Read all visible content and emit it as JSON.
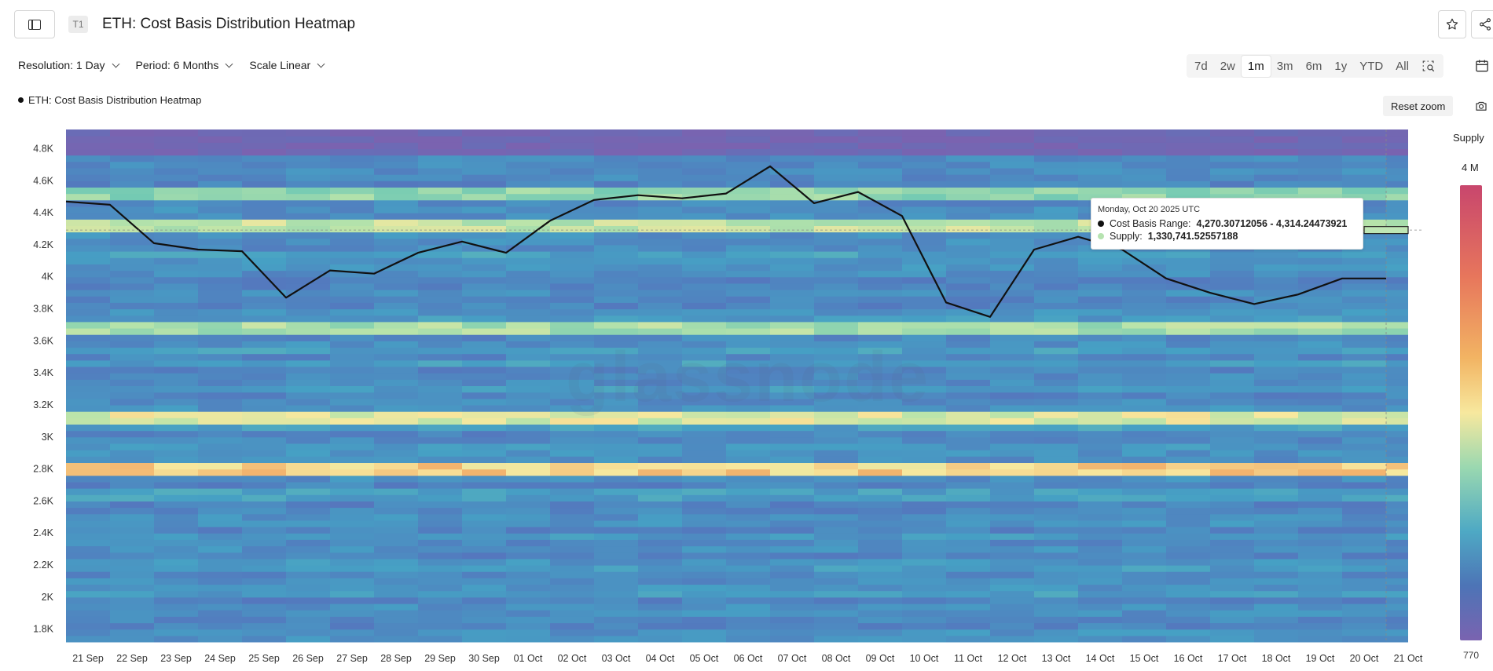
{
  "header": {
    "badge": "T1",
    "title": "ETH: Cost Basis Distribution Heatmap"
  },
  "controls": {
    "resolution": "Resolution: 1 Day",
    "period": "Period: 6 Months",
    "scale": "Scale Linear"
  },
  "ranges": [
    "7d",
    "2w",
    "1m",
    "3m",
    "6m",
    "1y",
    "YTD",
    "All"
  ],
  "active_range": "1m",
  "legend": {
    "series_label": "ETH: Cost Basis Distribution Heatmap"
  },
  "reset_zoom": "Reset zoom",
  "watermark": "glassnode",
  "tooltip": {
    "date": "Monday, Oct 20 2025 UTC",
    "range_label": "Cost Basis Range:",
    "range_value": "4,270.30712056 - 4,314.24473921",
    "supply_label": "Supply:",
    "supply_value": "1,330,741.52557188",
    "range_color": "#111111",
    "supply_color": "#b6e3b0"
  },
  "supply_scale": {
    "label": "Supply",
    "max": "4 M",
    "min": "770"
  },
  "colors": {
    "line": "#111111",
    "heat_low": "#7a63b0",
    "heat_high": "#f7e89e"
  },
  "icons": [
    "sidebar-toggle-icon",
    "star-icon",
    "share-icon",
    "zoom-select-icon",
    "calendar-icon",
    "camera-icon"
  ],
  "chart_data": {
    "type": "heatmap",
    "title": "ETH: Cost Basis Distribution Heatmap",
    "ylabel": "",
    "xlabel": "",
    "ylim": [
      1720,
      4920
    ],
    "yticks": [
      1800,
      2000,
      2200,
      2400,
      2600,
      2800,
      3000,
      3200,
      3400,
      3600,
      3800,
      4000,
      4200,
      4400,
      4600,
      4800
    ],
    "ytick_labels": [
      "1.8K",
      "2K",
      "2.2K",
      "2.4K",
      "2.6K",
      "2.8K",
      "3K",
      "3.2K",
      "3.4K",
      "3.6K",
      "3.8K",
      "4K",
      "4.2K",
      "4.4K",
      "4.6K",
      "4.8K"
    ],
    "x": [
      "21 Sep",
      "22 Sep",
      "23 Sep",
      "24 Sep",
      "25 Sep",
      "26 Sep",
      "27 Sep",
      "28 Sep",
      "29 Sep",
      "30 Sep",
      "01 Oct",
      "02 Oct",
      "03 Oct",
      "04 Oct",
      "05 Oct",
      "06 Oct",
      "07 Oct",
      "08 Oct",
      "09 Oct",
      "10 Oct",
      "11 Oct",
      "12 Oct",
      "13 Oct",
      "14 Oct",
      "15 Oct",
      "16 Oct",
      "17 Oct",
      "18 Oct",
      "19 Oct",
      "20 Oct",
      "21 Oct"
    ],
    "series": [
      {
        "values": [
          4470,
          4450,
          4210,
          4170,
          4160,
          3870,
          4040,
          4020,
          4150,
          4220,
          4150,
          4350,
          4480,
          4510,
          4490,
          4520,
          4690,
          4460,
          4530,
          4380,
          3840,
          3750,
          4170,
          4250,
          4170,
          3990,
          3900,
          3830,
          3890,
          3990,
          3990
        ]
      }
    ],
    "highlight_bands": [
      {
        "y": 2780,
        "intensity": 0.95
      },
      {
        "y": 3100,
        "intensity": 0.85
      },
      {
        "y": 3650,
        "intensity": 0.75
      },
      {
        "y": 4300,
        "intensity": 0.8
      },
      {
        "y": 4500,
        "intensity": 0.7
      }
    ],
    "grid": false,
    "legend_position": "top-left"
  }
}
